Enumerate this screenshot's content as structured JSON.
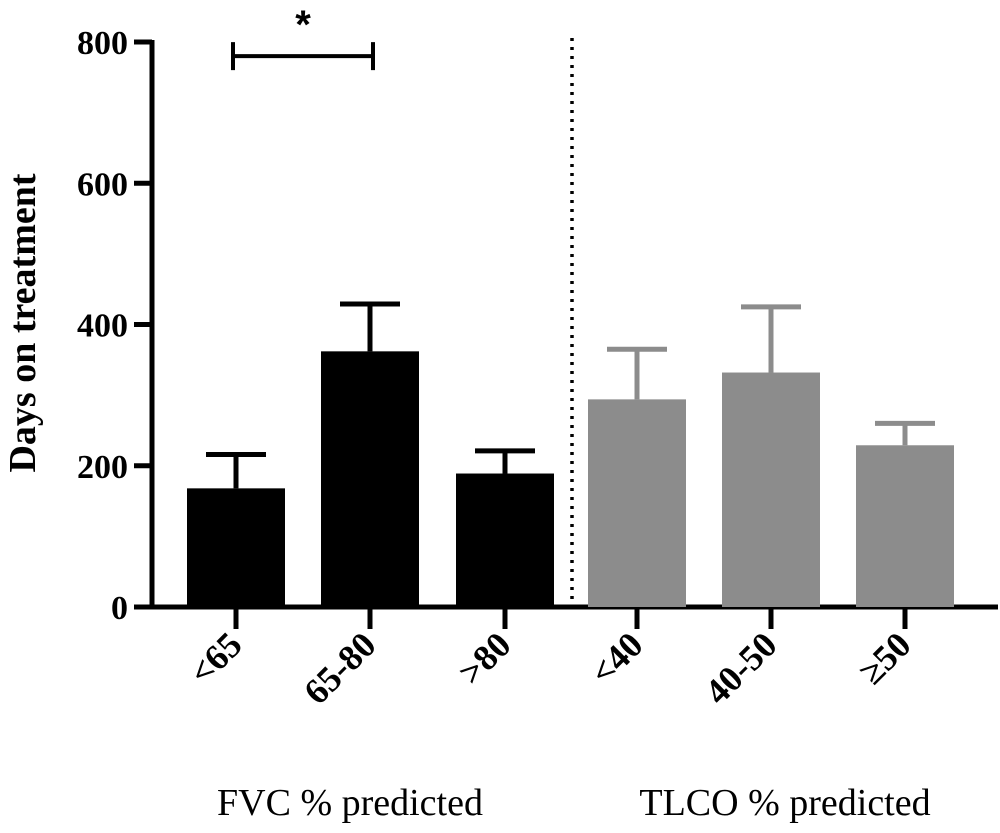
{
  "chart_data": {
    "type": "bar",
    "ylabel": "Days on treatment",
    "ylim": [
      0,
      800
    ],
    "yticks": [
      0,
      200,
      400,
      600,
      800
    ],
    "categories": [
      "<65",
      "65-80",
      ">80",
      "<40",
      "40-50",
      "≥50"
    ],
    "values": [
      168,
      362,
      189,
      294,
      332,
      229
    ],
    "errors": [
      48,
      67,
      32,
      71,
      93,
      31
    ],
    "groups": [
      {
        "label": "FVC % predicted",
        "categories": [
          "<65",
          "65-80",
          ">80"
        ],
        "color": "#000000"
      },
      {
        "label": "TLCO % predicted",
        "categories": [
          "<40",
          "40-50",
          "≥50"
        ],
        "color": "#8c8c8c"
      }
    ],
    "significance": {
      "from": "<65",
      "to": "65-80",
      "value": 780,
      "label": "*"
    },
    "divider": "dotted"
  }
}
